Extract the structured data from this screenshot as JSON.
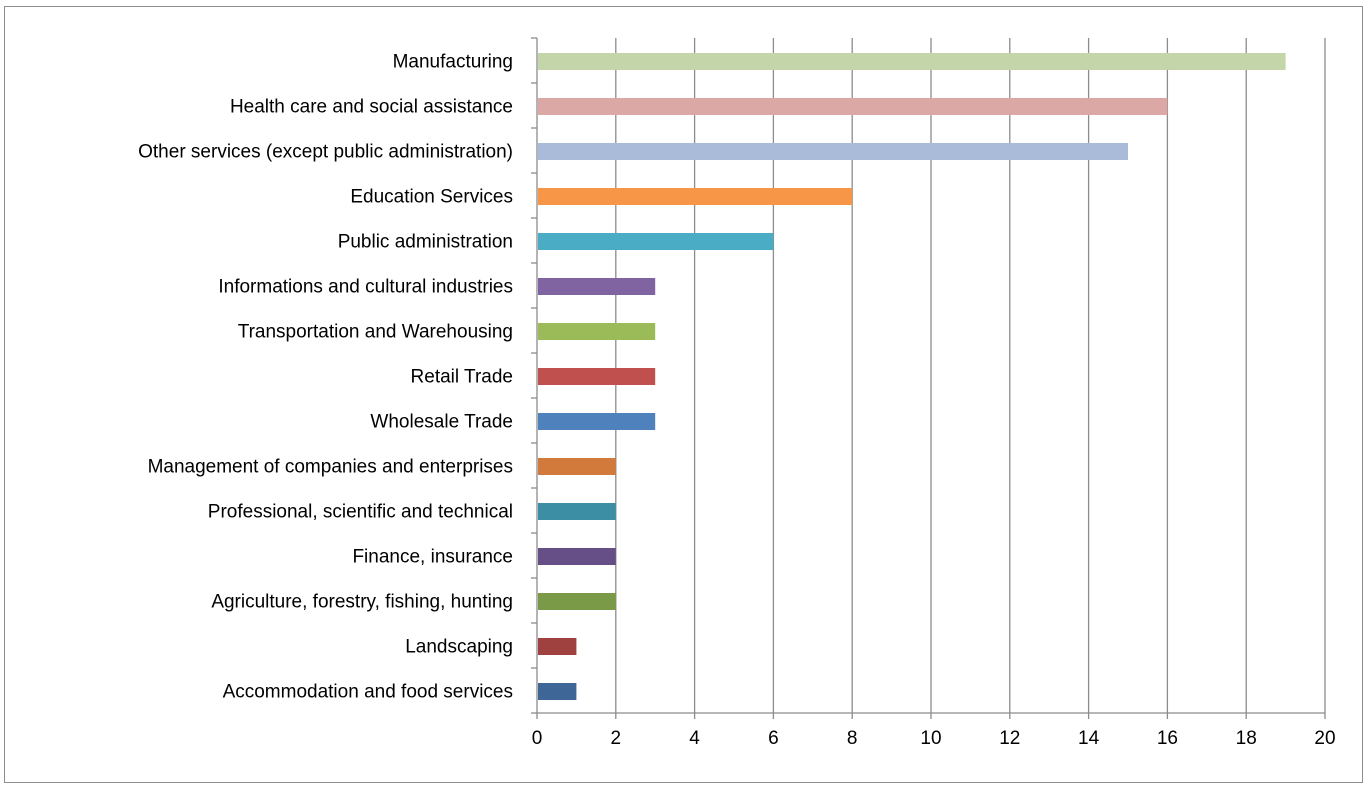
{
  "chart_data": {
    "type": "bar",
    "orientation": "horizontal",
    "title": "",
    "xlabel": "",
    "ylabel": "",
    "xlim": [
      0,
      20
    ],
    "x_ticks": [
      0,
      2,
      4,
      6,
      8,
      10,
      12,
      14,
      16,
      18,
      20
    ],
    "grid": "vertical major gridlines",
    "legend": "none",
    "categories": [
      "Manufacturing",
      "Health care and social assistance",
      "Other services (except public administration)",
      "Education Services",
      "Public administration",
      "Informations and cultural industries",
      "Transportation and Warehousing",
      "Retail Trade",
      "Wholesale Trade",
      "Management of companies and enterprises",
      "Professional, scientific and technical",
      "Finance, insurance",
      "Agriculture, forestry, fishing, hunting",
      "Landscaping",
      "Accommodation and food services"
    ],
    "values": [
      19,
      16,
      15,
      8,
      6,
      3,
      3,
      3,
      3,
      2,
      2,
      2,
      2,
      1,
      1
    ],
    "colors": [
      "#c4d6a9",
      "#dba8a6",
      "#a9bbd8",
      "#f79646",
      "#4bacc6",
      "#8064a2",
      "#9bbb59",
      "#c0504d",
      "#4f81bd",
      "#d27a3c",
      "#3b8ea3",
      "#664f86",
      "#7b9a47",
      "#9f413e",
      "#3e6697"
    ],
    "gridline_color": "#8c8c8c",
    "axis_color": "#8c8c8c"
  }
}
